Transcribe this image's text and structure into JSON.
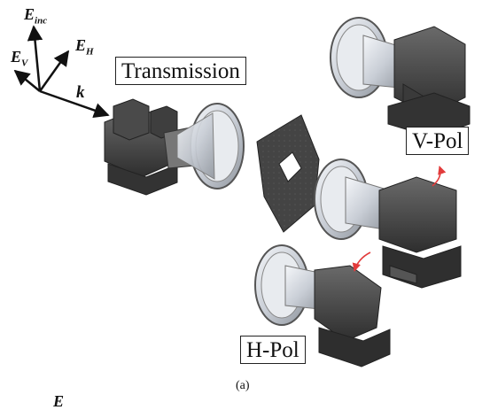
{
  "figure": {
    "caption": "(a)"
  },
  "vectors": {
    "e_inc": {
      "symbol": "E",
      "sub": "inc"
    },
    "e_h": {
      "symbol": "E",
      "sub": "H"
    },
    "e_v": {
      "symbol": "E",
      "sub": "V"
    },
    "k": {
      "symbol": "k"
    }
  },
  "labels": {
    "transmission": "Transmission",
    "v_pol": "V-Pol",
    "h_pol": "H-Pol"
  },
  "bottom_partial": {
    "symbol": "E"
  },
  "colors": {
    "metal_dark": "#3a3a3a",
    "metal_mid": "#5c5c5c",
    "horn_silver": "#d9dde3",
    "arrow_red": "#e23b3b"
  }
}
